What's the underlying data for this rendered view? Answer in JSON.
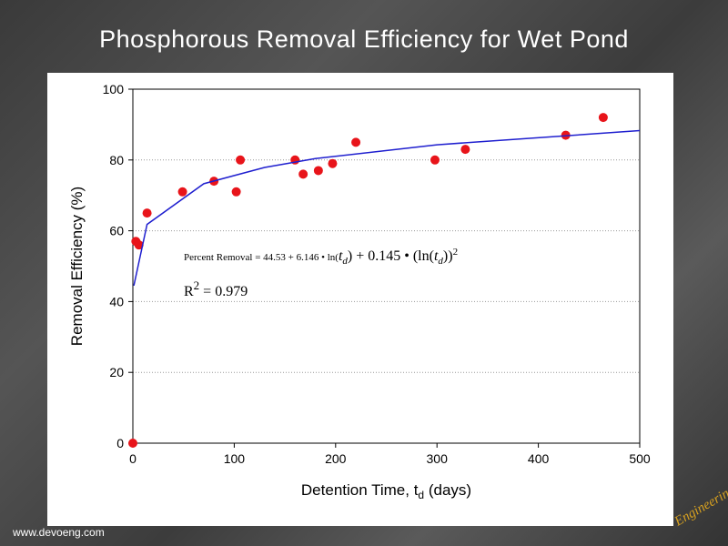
{
  "slide_title": "Phosphorous Removal Efficiency for Wet Pond",
  "footer": "www.devoeng.com",
  "logo_text": "Engineering",
  "chart_data": {
    "type": "scatter",
    "x_label": [
      "Detention Time, t",
      "d",
      " (days)"
    ],
    "y_label": "Removal Efficiency (%)",
    "xlim": [
      0,
      500
    ],
    "xticks": [
      0,
      100,
      200,
      300,
      400,
      500
    ],
    "ylim": [
      0,
      100
    ],
    "yticks": [
      0,
      20,
      40,
      60,
      80,
      100
    ],
    "grid": true,
    "series": [
      {
        "color": "#e8141a",
        "x": [
          0,
          3,
          6,
          14,
          49,
          80,
          102,
          106,
          160,
          168,
          183,
          197,
          220,
          298,
          328,
          427,
          464
        ],
        "values": [
          0,
          57,
          56,
          65,
          71,
          74,
          71,
          80,
          80,
          76,
          77,
          79,
          85,
          80,
          83,
          87,
          92
        ]
      },
      {
        "type": "line",
        "color": "#1f1fcf",
        "x": [
          1,
          14,
          70,
          130,
          180,
          300,
          500
        ],
        "values": [
          44.5,
          61.8,
          73.3,
          77.9,
          80.4,
          84.3,
          88.3
        ]
      }
    ],
    "annotations": [
      [
        "Percent Removal = 44.53 + 6.146 • ln(",
        "t",
        "d",
        ") + 0.145 • (ln(",
        "t",
        "d",
        "))",
        "2"
      ],
      [
        "R",
        "2",
        " = 0.979"
      ]
    ]
  }
}
